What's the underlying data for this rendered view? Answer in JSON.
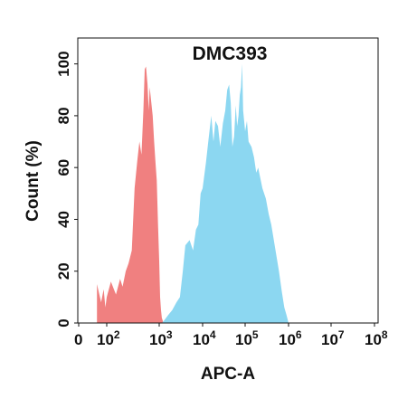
{
  "chart_data": {
    "type": "area",
    "title": "DMC393",
    "xlabel": "APC-A",
    "ylabel": "Count  (%)",
    "xscale": "log",
    "xlim": [
      0,
      100000000
    ],
    "ylim": [
      0,
      110
    ],
    "x_ticks": [
      {
        "label": "0",
        "exp": ""
      },
      {
        "label": "10",
        "exp": "2"
      },
      {
        "label": "10",
        "exp": "3"
      },
      {
        "label": "10",
        "exp": "4"
      },
      {
        "label": "10",
        "exp": "5"
      },
      {
        "label": "10",
        "exp": "6"
      },
      {
        "label": "10",
        "exp": "7"
      },
      {
        "label": "10",
        "exp": "8"
      }
    ],
    "y_ticks": [
      "0",
      "20",
      "40",
      "60",
      "80",
      "100"
    ],
    "grid": false,
    "colors": {
      "control": "#f08080",
      "sample": "#7fd3f0"
    },
    "series": [
      {
        "color": "#f08080",
        "x": [
          20,
          40,
          60,
          80,
          100,
          120,
          150,
          180,
          200,
          230,
          260,
          300,
          340,
          380,
          420,
          460,
          500,
          530,
          560,
          600,
          630,
          660,
          700,
          750,
          800,
          850,
          900,
          950,
          1000,
          1050,
          1100,
          1150,
          1200,
          1250
        ],
        "y": [
          15,
          8,
          13,
          6,
          10,
          16,
          11,
          17,
          14,
          20,
          23,
          28,
          52,
          62,
          70,
          65,
          82,
          98,
          99,
          92,
          82,
          91,
          86,
          80,
          70,
          62,
          55,
          38,
          24,
          10,
          5,
          2,
          1,
          0
        ]
      },
      {
        "color": "#7fd3f0",
        "x": [
          1150,
          1300,
          1600,
          2000,
          2500,
          3000,
          3500,
          4000,
          5000,
          6000,
          7000,
          8000,
          9000,
          10000,
          12000,
          14000,
          16000,
          18000,
          20000,
          23000,
          26000,
          30000,
          34000,
          38000,
          42000,
          46000,
          50000,
          55000,
          60000,
          65000,
          70000,
          75000,
          80000,
          85000,
          90000,
          100000,
          110000,
          120000,
          140000,
          160000,
          180000,
          200000,
          250000,
          300000,
          350000,
          400000,
          500000,
          600000,
          700000,
          800000,
          900000,
          1000000
        ],
        "y": [
          0,
          1,
          3,
          5,
          8,
          10,
          20,
          30,
          32,
          28,
          36,
          38,
          50,
          52,
          62,
          72,
          80,
          70,
          78,
          76,
          68,
          77,
          82,
          90,
          92,
          85,
          68,
          72,
          84,
          76,
          80,
          88,
          91,
          100,
          82,
          74,
          78,
          70,
          68,
          64,
          58,
          60,
          52,
          48,
          42,
          38,
          28,
          20,
          12,
          6,
          3,
          0
        ]
      }
    ]
  }
}
